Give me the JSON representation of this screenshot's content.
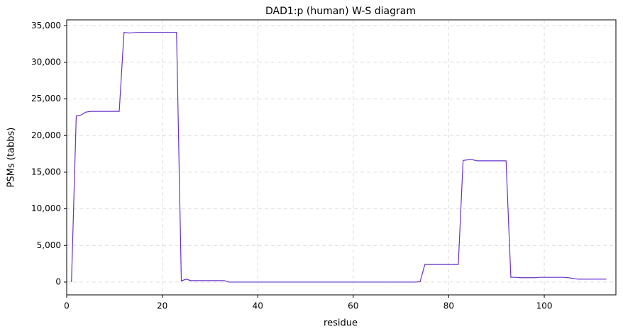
{
  "chart_data": {
    "type": "line",
    "title": "DAD1:p (human) W-S diagram",
    "xlabel": "residue",
    "ylabel": "PSMs (tabbs)",
    "x": [
      1,
      2,
      3,
      4,
      5,
      6,
      7,
      8,
      9,
      10,
      11,
      12,
      13,
      14,
      15,
      16,
      17,
      18,
      19,
      20,
      21,
      22,
      23,
      24,
      25,
      26,
      27,
      28,
      29,
      30,
      31,
      32,
      33,
      34,
      35,
      36,
      37,
      38,
      39,
      40,
      41,
      42,
      43,
      44,
      45,
      46,
      47,
      48,
      49,
      50,
      51,
      52,
      53,
      54,
      55,
      56,
      57,
      58,
      59,
      60,
      61,
      62,
      63,
      64,
      65,
      66,
      67,
      68,
      69,
      70,
      71,
      72,
      73,
      74,
      75,
      76,
      77,
      78,
      79,
      80,
      81,
      82,
      83,
      84,
      85,
      86,
      87,
      88,
      89,
      90,
      91,
      92,
      93,
      94,
      95,
      96,
      97,
      98,
      99,
      100,
      101,
      102,
      103,
      104,
      105,
      106,
      107,
      108,
      109,
      110,
      111,
      112,
      113
    ],
    "series": [
      {
        "name": "PSMs",
        "color": "#6633cc",
        "values": [
          0,
          22700,
          22800,
          23200,
          23300,
          23300,
          23300,
          23300,
          23300,
          23300,
          23300,
          34100,
          34000,
          34050,
          34100,
          34100,
          34100,
          34100,
          34100,
          34100,
          34100,
          34100,
          34100,
          150,
          400,
          200,
          200,
          200,
          200,
          200,
          200,
          200,
          200,
          0,
          0,
          0,
          0,
          0,
          0,
          0,
          0,
          0,
          0,
          0,
          0,
          0,
          0,
          0,
          0,
          0,
          0,
          0,
          0,
          0,
          0,
          0,
          0,
          0,
          0,
          0,
          0,
          0,
          0,
          0,
          0,
          0,
          0,
          0,
          0,
          0,
          0,
          0,
          0,
          50,
          2400,
          2400,
          2400,
          2400,
          2400,
          2400,
          2400,
          2400,
          16600,
          16700,
          16700,
          16550,
          16550,
          16550,
          16550,
          16550,
          16550,
          16550,
          650,
          650,
          600,
          600,
          600,
          600,
          650,
          650,
          650,
          650,
          650,
          650,
          600,
          500,
          400,
          400,
          400,
          400,
          400,
          400,
          400
        ]
      }
    ],
    "xlim": [
      0,
      115
    ],
    "xticks": [
      0,
      20,
      40,
      60,
      80,
      100
    ],
    "ylim": [
      -1750,
      35800
    ],
    "yticks": [
      0,
      {
        "value": 5000,
        "label": "5,000"
      },
      {
        "value": 10000,
        "label": "10,000"
      },
      {
        "value": 15000,
        "label": "15,000"
      },
      {
        "value": 20000,
        "label": "20,000"
      },
      {
        "value": 25000,
        "label": "25,000"
      },
      {
        "value": 30000,
        "label": "30,000"
      },
      {
        "value": 35000,
        "label": "35,000"
      }
    ],
    "grid": true
  }
}
